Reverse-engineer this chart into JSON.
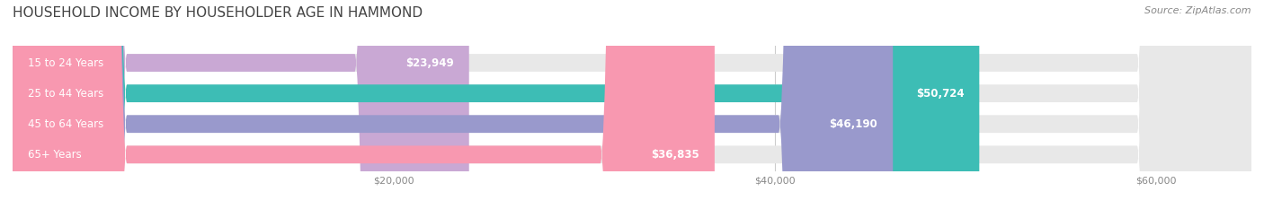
{
  "title": "HOUSEHOLD INCOME BY HOUSEHOLDER AGE IN HAMMOND",
  "source": "Source: ZipAtlas.com",
  "categories": [
    "15 to 24 Years",
    "25 to 44 Years",
    "45 to 64 Years",
    "65+ Years"
  ],
  "values": [
    23949,
    50724,
    46190,
    36835
  ],
  "labels": [
    "$23,949",
    "$50,724",
    "$46,190",
    "$36,835"
  ],
  "bar_colors": [
    "#c9a8d4",
    "#3dbdb5",
    "#9999cc",
    "#f898b0"
  ],
  "bar_bg_color": "#e8e8e8",
  "xmin": 0,
  "xmax": 65000,
  "xticks": [
    20000,
    40000,
    60000
  ],
  "xticklabels": [
    "$20,000",
    "$40,000",
    "$60,000"
  ],
  "title_fontsize": 11,
  "title_color": "#444444",
  "source_fontsize": 8,
  "source_color": "#888888",
  "label_fontsize": 8.5,
  "bar_height": 0.58,
  "background_color": "#ffffff",
  "fig_width": 14.06,
  "fig_height": 2.33
}
